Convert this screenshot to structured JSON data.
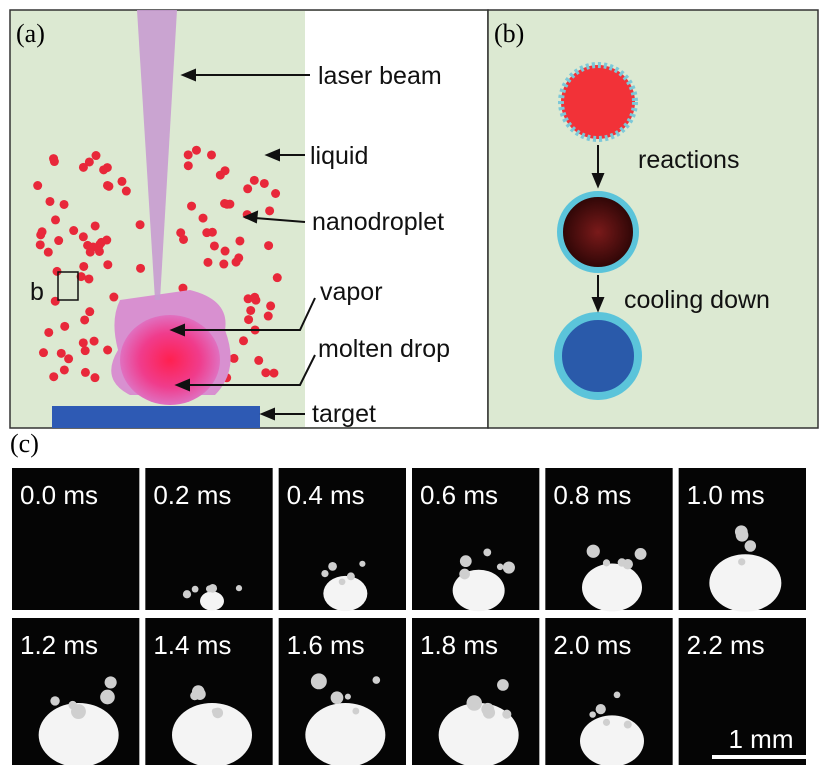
{
  "panel_a": {
    "label": "(a)",
    "inset_label": "b",
    "annotations": [
      "laser beam",
      "liquid",
      "nanodroplet",
      "vapor",
      "molten drop",
      "target"
    ]
  },
  "panel_b": {
    "label": "(b)",
    "steps": [
      "reactions",
      "cooling down"
    ]
  },
  "panel_c": {
    "label": "(c)",
    "frames": [
      "0.0 ms",
      "0.2 ms",
      "0.4 ms",
      "0.6 ms",
      "0.8 ms",
      "1.0 ms",
      "1.2 ms",
      "1.4 ms",
      "1.6 ms",
      "1.8 ms",
      "2.0 ms",
      "2.2 ms"
    ],
    "scale_bar": "1 mm"
  }
}
